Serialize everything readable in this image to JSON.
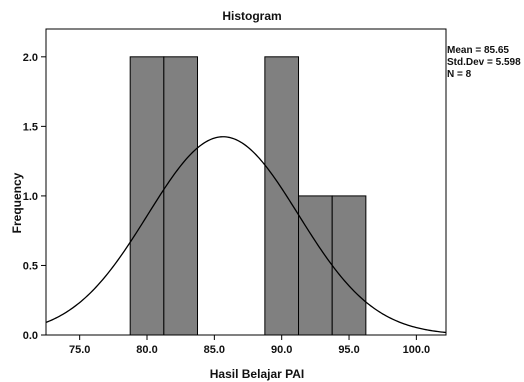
{
  "chart_data": {
    "type": "bar",
    "title": "Histogram",
    "xlabel": "Hasil Belajar PAI",
    "ylabel": "Frequency",
    "bins": [
      {
        "start": 78.75,
        "end": 81.25,
        "count": 2
      },
      {
        "start": 81.25,
        "end": 83.75,
        "count": 2
      },
      {
        "start": 83.75,
        "end": 86.25,
        "count": 0
      },
      {
        "start": 86.25,
        "end": 88.75,
        "count": 0
      },
      {
        "start": 88.75,
        "end": 91.25,
        "count": 2
      },
      {
        "start": 91.25,
        "end": 93.75,
        "count": 1
      },
      {
        "start": 93.75,
        "end": 96.25,
        "count": 1
      }
    ],
    "x_ticks": [
      {
        "value": 75,
        "label": "75.0"
      },
      {
        "value": 80,
        "label": "80.0"
      },
      {
        "value": 85,
        "label": "85.0"
      },
      {
        "value": 90,
        "label": "90.0"
      },
      {
        "value": 95,
        "label": "95.0"
      },
      {
        "value": 100,
        "label": "100.0"
      }
    ],
    "y_ticks": [
      {
        "value": 0,
        "label": "0.0"
      },
      {
        "value": 0.5,
        "label": "0.5"
      },
      {
        "value": 1,
        "label": "1.0"
      },
      {
        "value": 1.5,
        "label": "1.5"
      },
      {
        "value": 2,
        "label": "2.0"
      }
    ],
    "xlim": [
      72.5,
      102.2
    ],
    "ylim": [
      0,
      2.2
    ],
    "normal_curve": {
      "mean": 85.65,
      "std_dev": 5.598,
      "n": 8,
      "bin_width": 2.5
    },
    "stats": {
      "mean_text": "Mean = 85.65",
      "std_text": "Std.Dev = 5.598",
      "n_text": "N = 8"
    },
    "grid": false,
    "legend": "none",
    "colors": {
      "bar_fill": "#808080",
      "bar_stroke": "#000000",
      "curve": "#000000",
      "frame": "#000000"
    }
  }
}
